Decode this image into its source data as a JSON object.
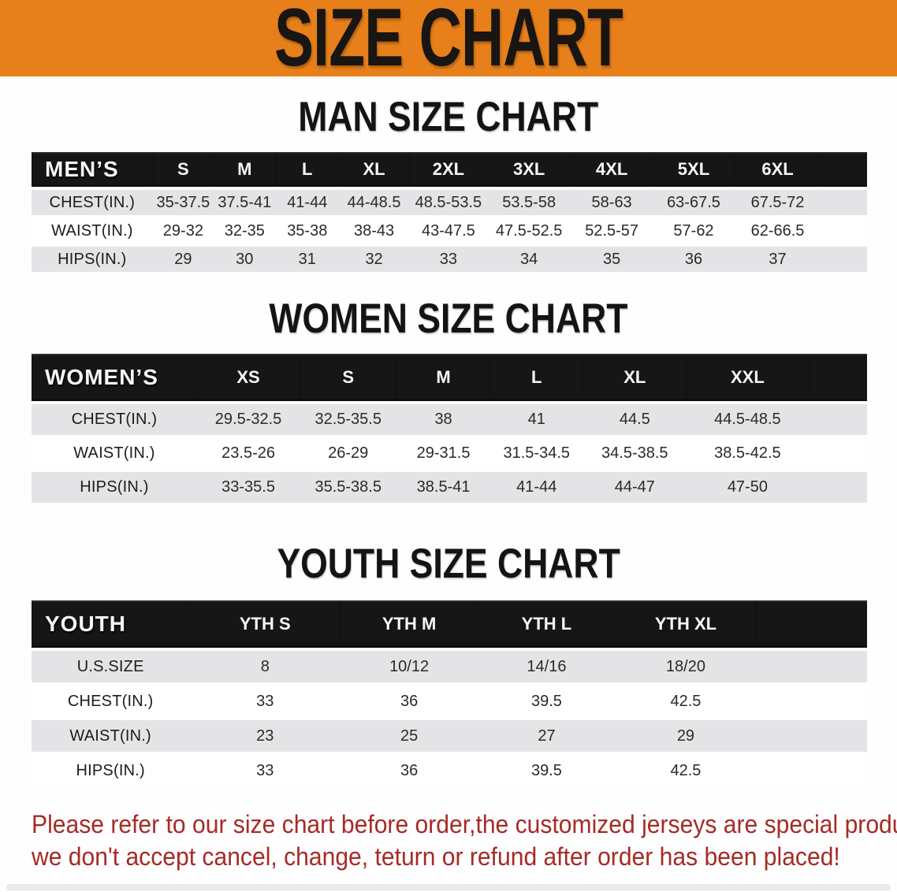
{
  "banner": {
    "title": "SIZE CHART"
  },
  "colors": {
    "banner_bg": "#e7801a",
    "table_header_bg": "#161616",
    "stripe_row_bg": "#e4e4e7",
    "disclaimer_red": "#a62b26"
  },
  "man": {
    "heading": "MAN SIZE CHART",
    "label": "MEN’S",
    "sizes": [
      "S",
      "M",
      "L",
      "XL",
      "2XL",
      "3XL",
      "4XL",
      "5XL",
      "6XL"
    ],
    "rows": [
      {
        "label": "CHEST(IN.)",
        "values": [
          "35-37.5",
          "37.5-41",
          "41-44",
          "44-48.5",
          "48.5-53.5",
          "53.5-58",
          "58-63",
          "63-67.5",
          "67.5-72"
        ]
      },
      {
        "label": "WAIST(IN.)",
        "values": [
          "29-32",
          "32-35",
          "35-38",
          "38-43",
          "43-47.5",
          "47.5-52.5",
          "52.5-57",
          "57-62",
          "62-66.5"
        ]
      },
      {
        "label": "HIPS(IN.)",
        "values": [
          "29",
          "30",
          "31",
          "32",
          "33",
          "34",
          "35",
          "36",
          "37"
        ]
      }
    ]
  },
  "women": {
    "heading": "WOMEN SIZE CHART",
    "label": "WOMEN’S",
    "sizes": [
      "XS",
      "S",
      "M",
      "L",
      "XL",
      "XXL"
    ],
    "rows": [
      {
        "label": "CHEST(IN.)",
        "values": [
          "29.5-32.5",
          "32.5-35.5",
          "38",
          "41",
          "44.5",
          "44.5-48.5"
        ]
      },
      {
        "label": "WAIST(IN.)",
        "values": [
          "23.5-26",
          "26-29",
          "29-31.5",
          "31.5-34.5",
          "34.5-38.5",
          "38.5-42.5"
        ]
      },
      {
        "label": "HIPS(IN.)",
        "values": [
          "33-35.5",
          "35.5-38.5",
          "38.5-41",
          "41-44",
          "44-47",
          "47-50"
        ]
      }
    ]
  },
  "youth": {
    "heading": "YOUTH SIZE CHART",
    "label": "YOUTH",
    "sizes": [
      "YTH S",
      "YTH M",
      "YTH L",
      "YTH XL"
    ],
    "rows": [
      {
        "label": "U.S.SIZE",
        "values": [
          "8",
          "10/12",
          "14/16",
          "18/20"
        ]
      },
      {
        "label": "CHEST(IN.)",
        "values": [
          "33",
          "36",
          "39.5",
          "42.5"
        ]
      },
      {
        "label": "WAIST(IN.)",
        "values": [
          "23",
          "25",
          "27",
          "29"
        ]
      },
      {
        "label": "HIPS(IN.)",
        "values": [
          "33",
          "36",
          "39.5",
          "42.5"
        ]
      }
    ]
  },
  "disclaimer": {
    "line1": "Please refer to our size chart before order,the customized jerseys are special products,",
    "line2": "we don't accept cancel, change, teturn or refund after order has been placed!"
  }
}
